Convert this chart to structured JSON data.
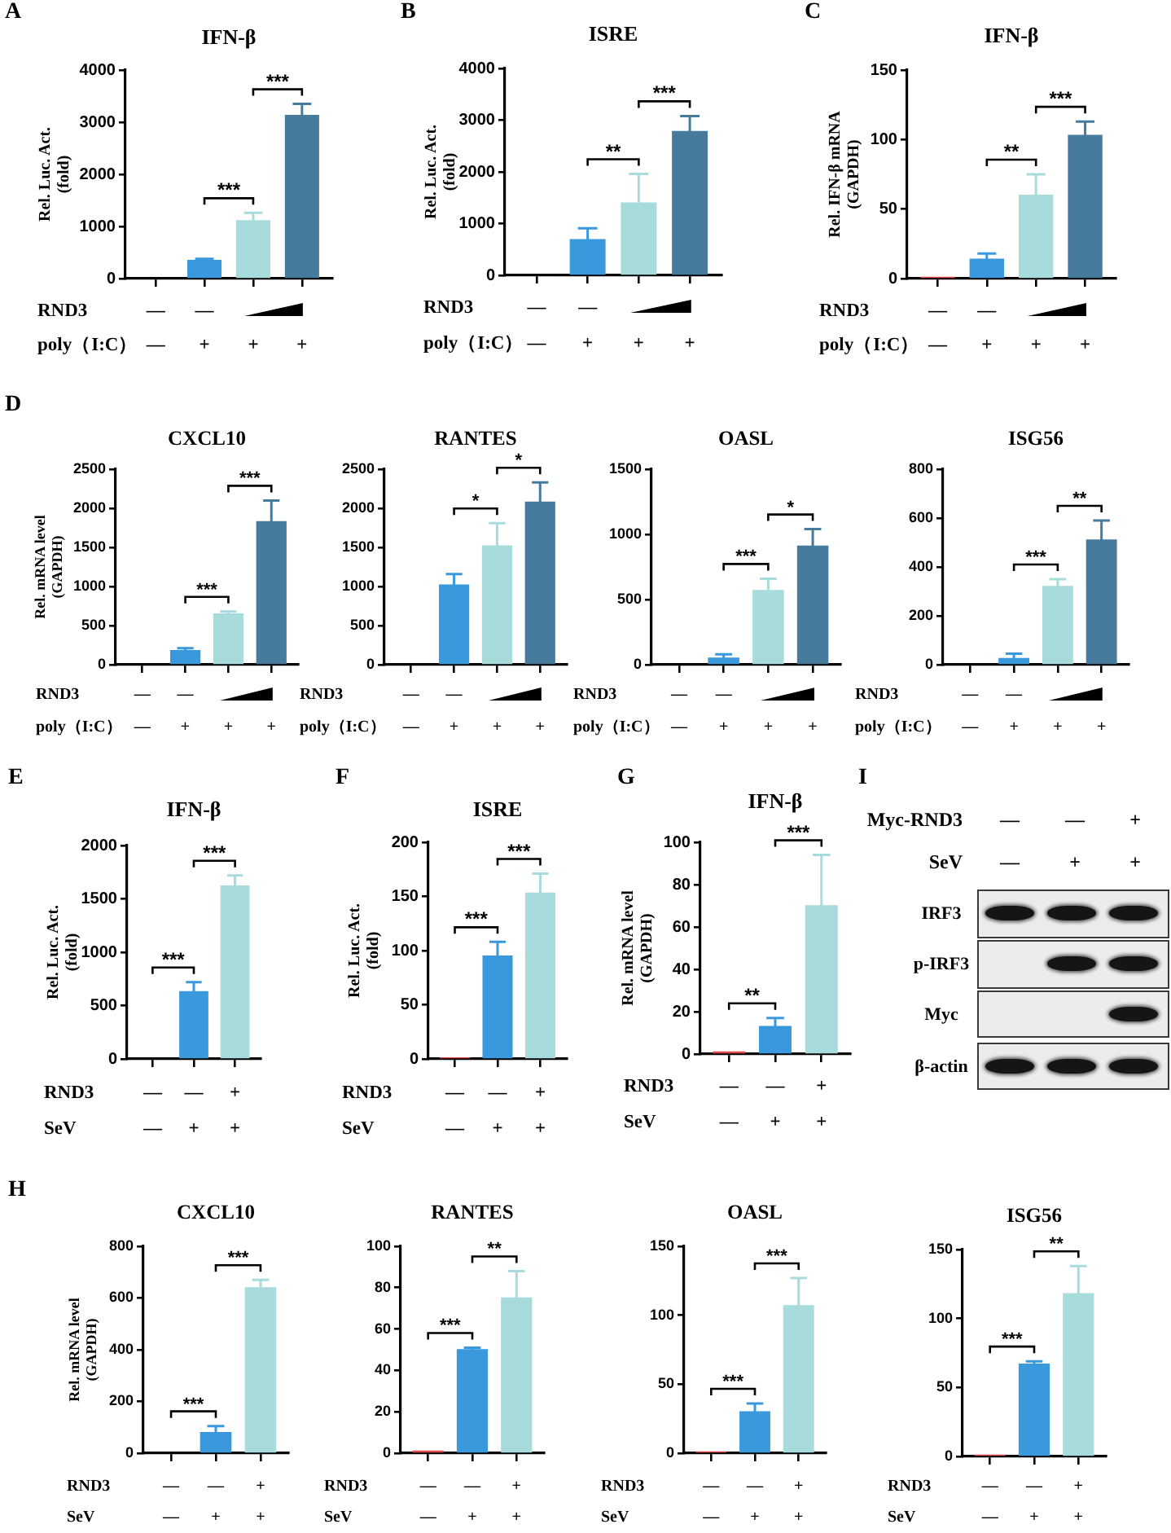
{
  "chart_data": [
    {
      "type": "bar",
      "title": "IFN-β",
      "ylabel": "Rel. Luc. Act.\n(fold)",
      "xlabel": "RND3\npoly（I:C）",
      "categories": [
        "—\n—",
        "—\n+",
        "\n+",
        "\n+"
      ],
      "values": [
        null,
        350,
        1110,
        3130
      ],
      "colors": [
        null,
        "#3a98dd",
        "#a8dcdc",
        "#467b9e"
      ],
      "errors": [
        null,
        [
          350,
          380
        ],
        [
          1110,
          1260
        ],
        [
          3130,
          3350
        ]
      ],
      "ylim": [
        0,
        4000
      ],
      "yticks": [
        0,
        1000,
        2000,
        3000,
        4000
      ],
      "annotations": [
        "A",
        "***",
        "***"
      ]
    },
    {
      "type": "bar",
      "title": "ISRE",
      "ylabel": "Rel. Luc. Act.\n(fold)",
      "xlabel": "RND3\npoly（I:C）",
      "categories": [
        "—\n—",
        "—\n+",
        "\n+",
        "\n+"
      ],
      "values": [
        null,
        690,
        1400,
        2780
      ],
      "colors": [
        null,
        "#3a98dd",
        "#a8dcdc",
        "#467b9e"
      ],
      "errors": [
        null,
        [
          690,
          910
        ],
        [
          1400,
          1960
        ],
        [
          2780,
          3080
        ]
      ],
      "ylim": [
        0,
        4000
      ],
      "yticks": [
        0,
        1000,
        2000,
        3000,
        4000
      ],
      "annotations": [
        "B",
        "**",
        "***"
      ]
    },
    {
      "type": "bar",
      "title": "IFN-β",
      "ylabel": "Rel. IFN-β mRNA\n(GAPDH)",
      "xlabel": "RND3\npoly（I:C）",
      "categories": [
        "—\n—",
        "—\n+",
        "\n+",
        "\n+"
      ],
      "values": [
        1,
        14,
        60,
        103
      ],
      "colors": [
        "#e2474f",
        "#3a98dd",
        "#a8dcdc",
        "#467b9e"
      ],
      "errors": [
        null,
        [
          14,
          18
        ],
        [
          60,
          75
        ],
        [
          103,
          113
        ]
      ],
      "ylim": [
        0,
        150
      ],
      "yticks": [
        0,
        50,
        100,
        150
      ],
      "annotations": [
        "C",
        "**",
        "***"
      ]
    },
    {
      "type": "bar",
      "title": "CXCL10",
      "ylabel": "Rel. mRNA level\n(GAPDH)",
      "xlabel": "RND3\npoly（I:C）",
      "categories": [
        "—\n—",
        "—\n+",
        "\n+",
        "\n+"
      ],
      "values": [
        null,
        180,
        650,
        1830
      ],
      "colors": [
        null,
        "#3a98dd",
        "#a8dcdc",
        "#467b9e"
      ],
      "errors": [
        null,
        [
          180,
          210
        ],
        [
          650,
          680
        ],
        [
          1830,
          2100
        ]
      ],
      "ylim": [
        0,
        2500
      ],
      "yticks": [
        0,
        500,
        1000,
        1500,
        2000,
        2500
      ],
      "annotations": [
        "D",
        "***",
        "***"
      ]
    },
    {
      "type": "bar",
      "title": "RANTES",
      "xlabel": "RND3\npoly（I:C）",
      "categories": [
        "—\n—",
        "—\n+",
        "\n+",
        "\n+"
      ],
      "values": [
        null,
        1020,
        1520,
        2080
      ],
      "colors": [
        null,
        "#3a98dd",
        "#a8dcdc",
        "#467b9e"
      ],
      "errors": [
        null,
        [
          1020,
          1160
        ],
        [
          1520,
          1810
        ],
        [
          2080,
          2330
        ]
      ],
      "ylim": [
        0,
        2500
      ],
      "yticks": [
        0,
        500,
        1000,
        1500,
        2000,
        2500
      ],
      "annotations": [
        "*",
        "*"
      ]
    },
    {
      "type": "bar",
      "title": "OASL",
      "xlabel": "RND3\npoly（I:C）",
      "categories": [
        "—\n—",
        "—\n+",
        "\n+",
        "\n+"
      ],
      "values": [
        null,
        50,
        570,
        910
      ],
      "colors": [
        null,
        "#3a98dd",
        "#a8dcdc",
        "#467b9e"
      ],
      "errors": [
        null,
        [
          50,
          80
        ],
        [
          570,
          660
        ],
        [
          910,
          1040
        ]
      ],
      "ylim": [
        0,
        1500
      ],
      "yticks": [
        0,
        500,
        1000,
        1500
      ],
      "annotations": [
        "***",
        "*"
      ]
    },
    {
      "type": "bar",
      "title": "ISG56",
      "xlabel": "RND3\npoly（I:C）",
      "categories": [
        "—\n—",
        "—\n+",
        "\n+",
        "\n+"
      ],
      "values": [
        null,
        25,
        320,
        510
      ],
      "colors": [
        null,
        "#3a98dd",
        "#a8dcdc",
        "#467b9e"
      ],
      "errors": [
        null,
        [
          25,
          45
        ],
        [
          320,
          350
        ],
        [
          510,
          590
        ]
      ],
      "ylim": [
        0,
        800
      ],
      "yticks": [
        0,
        200,
        400,
        600,
        800
      ],
      "annotations": [
        "***",
        "**"
      ]
    },
    {
      "type": "bar",
      "title": "IFN-β",
      "ylabel": "Rel. Luc. Act.\n(fold)",
      "xlabel": "RND3\nSeV",
      "categories": [
        "—\n—",
        "—\n+",
        "+\n+"
      ],
      "values": [
        null,
        630,
        1620
      ],
      "colors": [
        null,
        "#3a98dd",
        "#a8dcdc"
      ],
      "errors": [
        null,
        [
          630,
          720
        ],
        [
          1620,
          1720
        ]
      ],
      "ylim": [
        0,
        2000
      ],
      "yticks": [
        0,
        500,
        1000,
        1500,
        2000
      ],
      "annotations": [
        "E",
        "***",
        "***"
      ]
    },
    {
      "type": "bar",
      "title": "ISRE",
      "ylabel": "Rel. Luc. Act.\n(fold)",
      "xlabel": "RND3\nSeV",
      "categories": [
        "—\n—",
        "—\n+",
        "+\n+"
      ],
      "values": [
        1,
        95,
        153
      ],
      "colors": [
        "#e2474f",
        "#3a98dd",
        "#a8dcdc"
      ],
      "errors": [
        null,
        [
          95,
          108
        ],
        [
          153,
          171
        ]
      ],
      "ylim": [
        0,
        200
      ],
      "yticks": [
        0,
        50,
        100,
        150,
        200
      ],
      "annotations": [
        "F",
        "***",
        "***"
      ]
    },
    {
      "type": "bar",
      "title": "IFN-β",
      "ylabel": "Rel. mRNA level\n(GAPDH)",
      "xlabel": "RND3\nSeV",
      "categories": [
        "—\n—",
        "—\n+",
        "+\n+"
      ],
      "values": [
        1,
        13,
        70
      ],
      "colors": [
        "#e2474f",
        "#3a98dd",
        "#a8dcdc"
      ],
      "errors": [
        null,
        [
          13,
          17
        ],
        [
          70,
          94
        ]
      ],
      "ylim": [
        0,
        100
      ],
      "yticks": [
        0,
        20,
        40,
        60,
        80,
        100
      ],
      "annotations": [
        "G",
        "**",
        "***"
      ]
    },
    {
      "type": "other",
      "xlabel": "Myc-RND3\nSeV",
      "categories": [
        "—\n—",
        "—\n+",
        "+\n+"
      ],
      "y_categories": [
        "IRF3",
        "p-IRF3",
        "Myc",
        "β-actin"
      ],
      "annotations": [
        "I"
      ]
    },
    {
      "type": "bar",
      "title": "CXCL10",
      "ylabel": "Rel. mRNA level\n(GAPDH)",
      "xlabel": "RND3\nSeV",
      "categories": [
        "—\n—",
        "—\n+",
        "+\n+"
      ],
      "values": [
        null,
        80,
        640
      ],
      "colors": [
        null,
        "#3a98dd",
        "#a8dcdc"
      ],
      "errors": [
        null,
        [
          80,
          105
        ],
        [
          640,
          670
        ]
      ],
      "ylim": [
        0,
        800
      ],
      "yticks": [
        0,
        200,
        400,
        600,
        800
      ],
      "annotations": [
        "H",
        "***",
        "***"
      ]
    },
    {
      "type": "bar",
      "title": "RANTES",
      "xlabel": "RND3\nSeV",
      "categories": [
        "—\n—",
        "—\n+",
        "+\n+"
      ],
      "values": [
        1,
        50,
        75
      ],
      "colors": [
        "#e2474f",
        "#3a98dd",
        "#a8dcdc"
      ],
      "errors": [
        null,
        [
          50,
          51
        ],
        [
          75,
          88
        ]
      ],
      "ylim": [
        0,
        100
      ],
      "yticks": [
        0,
        20,
        40,
        60,
        80,
        100
      ],
      "annotations": [
        "***",
        "**"
      ]
    },
    {
      "type": "bar",
      "title": "OASL",
      "xlabel": "RND3\nSeV",
      "categories": [
        "—\n—",
        "—\n+",
        "+\n+"
      ],
      "values": [
        1,
        30,
        107
      ],
      "colors": [
        "#e2474f",
        "#3a98dd",
        "#a8dcdc"
      ],
      "errors": [
        null,
        [
          30,
          36
        ],
        [
          107,
          127
        ]
      ],
      "ylim": [
        0,
        150
      ],
      "yticks": [
        0,
        50,
        100,
        150
      ],
      "annotations": [
        "***",
        "***"
      ]
    },
    {
      "type": "bar",
      "title": "ISG56",
      "xlabel": "RND3\nSeV",
      "categories": [
        "—\n—",
        "—\n+",
        "+\n+"
      ],
      "values": [
        1,
        67,
        118
      ],
      "colors": [
        "#e2474f",
        "#3a98dd",
        "#a8dcdc"
      ],
      "errors": [
        null,
        [
          67,
          69
        ],
        [
          118,
          138
        ]
      ],
      "ylim": [
        0,
        150
      ],
      "yticks": [
        0,
        50,
        100,
        150
      ],
      "annotations": [
        "***",
        "**"
      ]
    }
  ]
}
